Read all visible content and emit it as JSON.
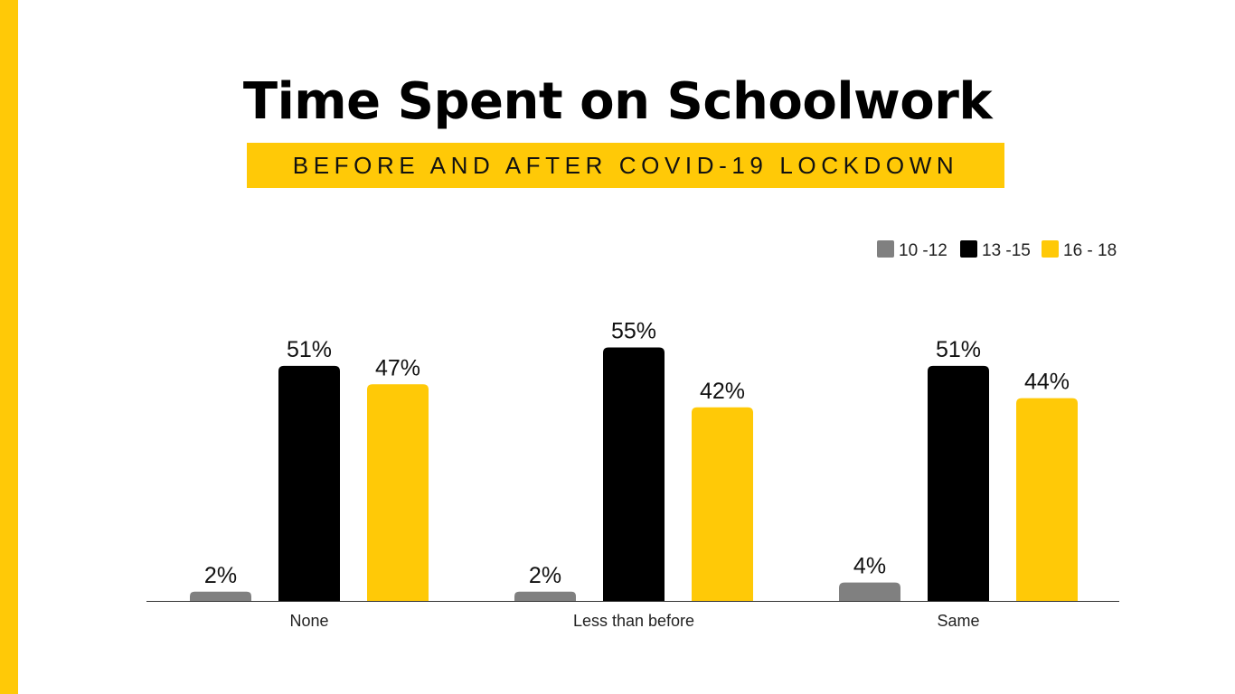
{
  "title": "Time Spent on Schoolwork",
  "subtitle": "BEFORE AND AFTER COVID-19 LOCKDOWN",
  "colors": {
    "stripe": "#FFC907",
    "band": "#FFC907",
    "axis": "#333333"
  },
  "chart_data": {
    "type": "bar",
    "categories": [
      "None",
      "Less than before",
      "Same"
    ],
    "series": [
      {
        "name": "10 -12",
        "color": "#808080",
        "values": [
          2,
          2,
          4
        ],
        "labels": [
          "2%",
          "2%",
          "4%"
        ]
      },
      {
        "name": "13 -15",
        "color": "#000000",
        "values": [
          51,
          55,
          51
        ],
        "labels": [
          "51%",
          "55%",
          "51%"
        ]
      },
      {
        "name": "16 - 18",
        "color": "#FFC907",
        "values": [
          47,
          42,
          44
        ],
        "labels": [
          "47%",
          "42%",
          "44%"
        ]
      }
    ],
    "legend_position": "top-right",
    "value_unit": "%",
    "ylim": [
      0,
      60
    ],
    "grid": false
  }
}
